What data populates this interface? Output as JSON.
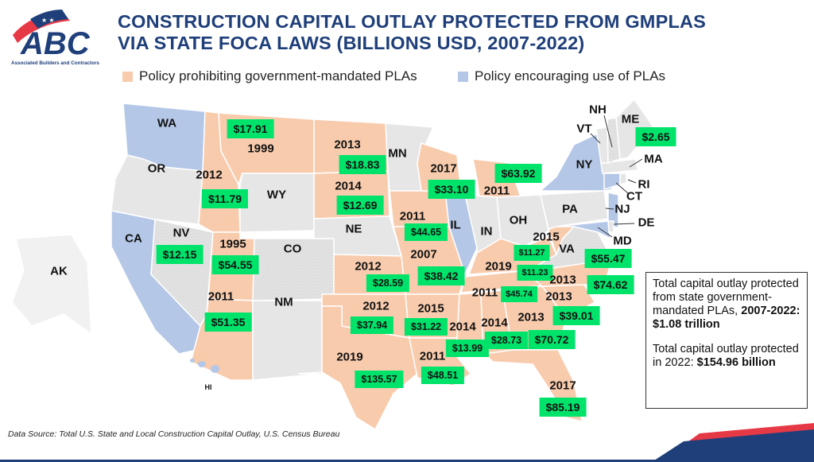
{
  "logo": {
    "text": "ABC",
    "subtitle": "Associated Builders and Contractors"
  },
  "title": {
    "line1": "CONSTRUCTION CAPITAL OUTLAY PROTECTED FROM GMPLAS",
    "line2": "VIA STATE FOCA LAWS (BILLIONS USD, 2007-2022)"
  },
  "legend": {
    "prohibiting": {
      "label": "Policy prohibiting government-mandated PLAs",
      "color": "#F8CBAD"
    },
    "encouraging": {
      "label": "Policy encouraging use of PLAs",
      "color": "#B4C7E7"
    },
    "neutral_color": "#E7E6E6",
    "value_box_color": "#00E36B"
  },
  "states": [
    {
      "abbr": "WA",
      "policy": "encouraging",
      "label": "WA"
    },
    {
      "abbr": "OR",
      "policy": "none",
      "label": "OR"
    },
    {
      "abbr": "CA",
      "policy": "encouraging",
      "label": "CA"
    },
    {
      "abbr": "NV",
      "policy": "none",
      "label": "NV",
      "value": "$12.15"
    },
    {
      "abbr": "ID",
      "policy": "prohibiting",
      "year": "2012",
      "value": "$11.79"
    },
    {
      "abbr": "MT",
      "policy": "prohibiting",
      "year": "1999",
      "value": "$17.91"
    },
    {
      "abbr": "WY",
      "policy": "none",
      "label": "WY"
    },
    {
      "abbr": "UT",
      "policy": "prohibiting",
      "year": "1995",
      "value": "$54.55"
    },
    {
      "abbr": "CO",
      "policy": "none",
      "label": "CO"
    },
    {
      "abbr": "AZ",
      "policy": "prohibiting",
      "year": "2011",
      "value": "$51.35"
    },
    {
      "abbr": "NM",
      "policy": "none",
      "label": "NM"
    },
    {
      "abbr": "ND",
      "policy": "prohibiting",
      "year": "2013",
      "value": "$18.83"
    },
    {
      "abbr": "SD",
      "policy": "prohibiting",
      "year": "2014",
      "value": "$12.69"
    },
    {
      "abbr": "NE",
      "policy": "none",
      "label": "NE"
    },
    {
      "abbr": "KS",
      "policy": "prohibiting",
      "year": "2012",
      "value": "$28.59"
    },
    {
      "abbr": "OK",
      "policy": "prohibiting",
      "year": "2012",
      "value": "$37.94"
    },
    {
      "abbr": "TX",
      "policy": "prohibiting",
      "year": "2019",
      "value": "$135.57"
    },
    {
      "abbr": "MN",
      "policy": "none",
      "label": "MN"
    },
    {
      "abbr": "IA",
      "policy": "prohibiting",
      "year": "2011",
      "value": "$44.65"
    },
    {
      "abbr": "MO",
      "policy": "prohibiting",
      "year": "2007",
      "value": "$38.42"
    },
    {
      "abbr": "AR",
      "policy": "prohibiting",
      "year": "2015",
      "value": "$31.22"
    },
    {
      "abbr": "LA",
      "policy": "prohibiting",
      "year": "2011",
      "value": "$48.51"
    },
    {
      "abbr": "WI",
      "policy": "prohibiting",
      "year": "2017",
      "value": "$33.10"
    },
    {
      "abbr": "MI",
      "policy": "prohibiting",
      "year": "2011",
      "value": "$63.92"
    },
    {
      "abbr": "IL",
      "policy": "encouraging",
      "label": "IL"
    },
    {
      "abbr": "IN",
      "policy": "none",
      "label": "IN"
    },
    {
      "abbr": "OH",
      "policy": "none",
      "label": "OH"
    },
    {
      "abbr": "KY",
      "policy": "prohibiting",
      "year": "2019",
      "value": "$11.23"
    },
    {
      "abbr": "TN",
      "policy": "prohibiting",
      "year": "2011",
      "value": "$45.74"
    },
    {
      "abbr": "MS",
      "policy": "prohibiting",
      "year": "2014",
      "value": "$13.99"
    },
    {
      "abbr": "AL",
      "policy": "prohibiting",
      "year": "2014",
      "value": "$28.73"
    },
    {
      "abbr": "GA",
      "policy": "prohibiting",
      "year": "2013",
      "value": "$70.72"
    },
    {
      "abbr": "FL",
      "policy": "prohibiting",
      "year": "2017",
      "value": "$85.19"
    },
    {
      "abbr": "SC",
      "policy": "prohibiting",
      "year": "2013",
      "value": "$39.01"
    },
    {
      "abbr": "NC",
      "policy": "prohibiting",
      "year": "2013",
      "value": "$74.62"
    },
    {
      "abbr": "WV",
      "policy": "prohibiting",
      "year": "2015",
      "value": "$11.27"
    },
    {
      "abbr": "VA",
      "policy": "none",
      "label": "VA",
      "value": "$55.47"
    },
    {
      "abbr": "PA",
      "policy": "none",
      "label": "PA"
    },
    {
      "abbr": "NY",
      "policy": "encouraging",
      "label": "NY"
    },
    {
      "abbr": "NJ",
      "policy": "encouraging",
      "label": "NJ"
    },
    {
      "abbr": "MD",
      "policy": "encouraging",
      "label": "MD"
    },
    {
      "abbr": "DE",
      "policy": "none",
      "label": "DE"
    },
    {
      "abbr": "CT",
      "policy": "encouraging",
      "label": "CT"
    },
    {
      "abbr": "RI",
      "policy": "none",
      "label": "RI"
    },
    {
      "abbr": "MA",
      "policy": "none",
      "label": "MA"
    },
    {
      "abbr": "VT",
      "policy": "none",
      "label": "VT"
    },
    {
      "abbr": "NH",
      "policy": "none",
      "label": "NH"
    },
    {
      "abbr": "ME",
      "policy": "none",
      "label": "ME",
      "value": "$2.65"
    },
    {
      "abbr": "AK",
      "policy": "none",
      "label": "AK"
    },
    {
      "abbr": "HI",
      "policy": "encouraging",
      "label": "HI"
    }
  ],
  "info_box": {
    "text1": "Total capital outlay protected from state government-mandated PLAs, ",
    "text1_bold": "2007-2022: $1.08 trillion",
    "text2": "Total capital outlay protected in 2022: ",
    "text2_bold": "$154.96 billion"
  },
  "source": "Data Source: Total U.S. State and Local Construction Capital Outlay, U.S. Census Bureau"
}
